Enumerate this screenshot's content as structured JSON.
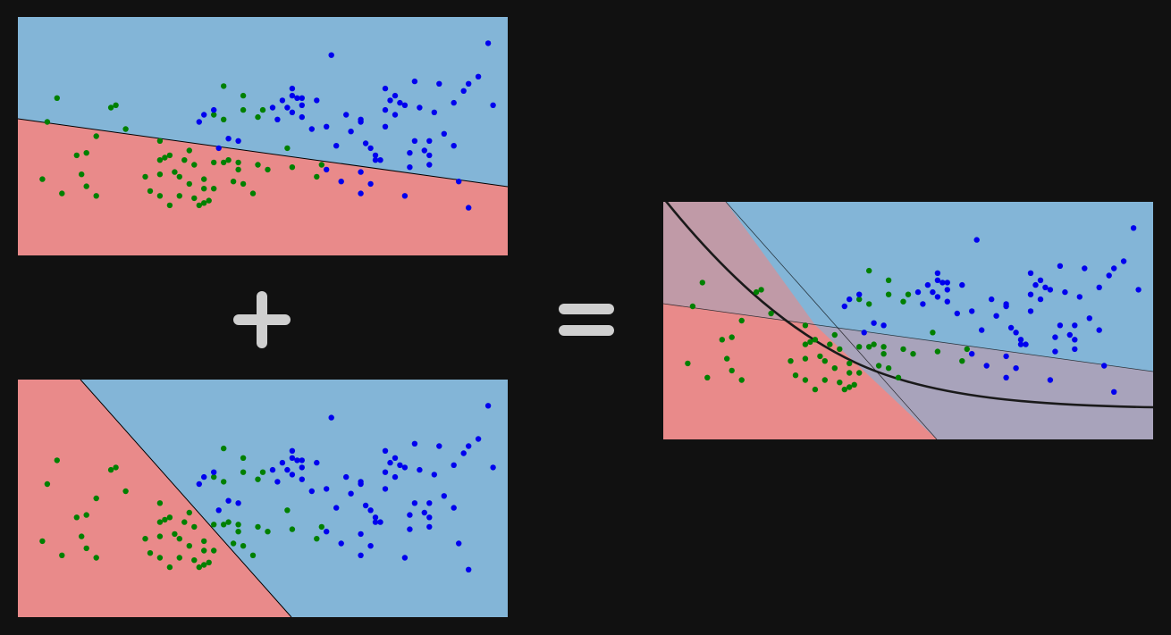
{
  "colors": {
    "background": "#111111",
    "region_class_a": "#e98a8a",
    "region_class_b": "#83b5d7",
    "region_overlap": "#a8a3bb",
    "region_overlap_left": "#c09aa7",
    "points_class_a": "#008000",
    "points_class_b": "#0000ee",
    "operator_symbol": "#cfcfcf",
    "combined_boundary": "#1a1a1a"
  },
  "icons": {
    "plus": "plus-icon",
    "equals": "equals-icon"
  },
  "diagram": {
    "description_symbols": [
      "+",
      "="
    ],
    "panels": [
      {
        "id": "top",
        "boundary": "straight-line-shallow"
      },
      {
        "id": "bottom",
        "boundary": "straight-line-steep"
      },
      {
        "id": "result",
        "boundary": "curved-combined"
      }
    ]
  },
  "chart_data": {
    "type": "scatter",
    "x_range": [
      0,
      1
    ],
    "y_range": [
      0,
      1
    ],
    "series": [
      {
        "values": [
          [
            0.08,
            0.66
          ],
          [
            0.12,
            0.42
          ],
          [
            0.19,
            0.62
          ],
          [
            0.14,
            0.43
          ],
          [
            0.16,
            0.5
          ],
          [
            0.2,
            0.63
          ],
          [
            0.22,
            0.53
          ],
          [
            0.06,
            0.56
          ],
          [
            0.05,
            0.32
          ],
          [
            0.13,
            0.34
          ],
          [
            0.09,
            0.26
          ],
          [
            0.14,
            0.29
          ],
          [
            0.16,
            0.25
          ],
          [
            0.27,
            0.27
          ],
          [
            0.29,
            0.4
          ],
          [
            0.32,
            0.35
          ],
          [
            0.34,
            0.4
          ],
          [
            0.3,
            0.41
          ],
          [
            0.31,
            0.42
          ],
          [
            0.29,
            0.34
          ],
          [
            0.33,
            0.33
          ],
          [
            0.35,
            0.3
          ],
          [
            0.36,
            0.38
          ],
          [
            0.38,
            0.32
          ],
          [
            0.4,
            0.39
          ],
          [
            0.42,
            0.39
          ],
          [
            0.45,
            0.39
          ],
          [
            0.43,
            0.4
          ],
          [
            0.45,
            0.36
          ],
          [
            0.44,
            0.31
          ],
          [
            0.46,
            0.3
          ],
          [
            0.38,
            0.28
          ],
          [
            0.4,
            0.28
          ],
          [
            0.49,
            0.38
          ],
          [
            0.51,
            0.36
          ],
          [
            0.48,
            0.26
          ],
          [
            0.56,
            0.37
          ],
          [
            0.61,
            0.33
          ],
          [
            0.35,
            0.44
          ],
          [
            0.4,
            0.59
          ],
          [
            0.42,
            0.57
          ],
          [
            0.46,
            0.61
          ],
          [
            0.49,
            0.58
          ],
          [
            0.29,
            0.25
          ],
          [
            0.36,
            0.24
          ],
          [
            0.39,
            0.23
          ],
          [
            0.29,
            0.48
          ],
          [
            0.46,
            0.67
          ],
          [
            0.5,
            0.61
          ],
          [
            0.55,
            0.45
          ],
          [
            0.62,
            0.38
          ],
          [
            0.42,
            0.71
          ],
          [
            0.37,
            0.21
          ],
          [
            0.31,
            0.21
          ],
          [
            0.33,
            0.25
          ],
          [
            0.26,
            0.33
          ],
          [
            0.38,
            0.22
          ]
        ]
      },
      {
        "values": [
          [
            0.37,
            0.56
          ],
          [
            0.38,
            0.59
          ],
          [
            0.41,
            0.45
          ],
          [
            0.4,
            0.61
          ],
          [
            0.43,
            0.49
          ],
          [
            0.52,
            0.62
          ],
          [
            0.54,
            0.65
          ],
          [
            0.55,
            0.62
          ],
          [
            0.56,
            0.6
          ],
          [
            0.58,
            0.58
          ],
          [
            0.58,
            0.63
          ],
          [
            0.6,
            0.53
          ],
          [
            0.53,
            0.57
          ],
          [
            0.56,
            0.67
          ],
          [
            0.56,
            0.7
          ],
          [
            0.57,
            0.66
          ],
          [
            0.58,
            0.66
          ],
          [
            0.61,
            0.65
          ],
          [
            0.63,
            0.54
          ],
          [
            0.65,
            0.46
          ],
          [
            0.67,
            0.59
          ],
          [
            0.68,
            0.52
          ],
          [
            0.7,
            0.57
          ],
          [
            0.71,
            0.47
          ],
          [
            0.7,
            0.56
          ],
          [
            0.72,
            0.45
          ],
          [
            0.73,
            0.42
          ],
          [
            0.74,
            0.4
          ],
          [
            0.75,
            0.54
          ],
          [
            0.75,
            0.61
          ],
          [
            0.76,
            0.65
          ],
          [
            0.77,
            0.59
          ],
          [
            0.78,
            0.64
          ],
          [
            0.79,
            0.63
          ],
          [
            0.8,
            0.37
          ],
          [
            0.81,
            0.73
          ],
          [
            0.82,
            0.62
          ],
          [
            0.83,
            0.44
          ],
          [
            0.84,
            0.38
          ],
          [
            0.84,
            0.48
          ],
          [
            0.84,
            0.42
          ],
          [
            0.87,
            0.51
          ],
          [
            0.85,
            0.6
          ],
          [
            0.89,
            0.64
          ],
          [
            0.89,
            0.46
          ],
          [
            0.91,
            0.69
          ],
          [
            0.92,
            0.72
          ],
          [
            0.97,
            0.63
          ],
          [
            0.9,
            0.31
          ],
          [
            0.94,
            0.75
          ],
          [
            0.81,
            0.48
          ],
          [
            0.73,
            0.4
          ],
          [
            0.66,
            0.31
          ],
          [
            0.7,
            0.26
          ],
          [
            0.72,
            0.3
          ],
          [
            0.79,
            0.25
          ],
          [
            0.77,
            0.67
          ],
          [
            0.64,
            0.84
          ],
          [
            0.63,
            0.36
          ],
          [
            0.92,
            0.2
          ],
          [
            0.7,
            0.35
          ],
          [
            0.75,
            0.7
          ],
          [
            0.8,
            0.43
          ],
          [
            0.96,
            0.89
          ],
          [
            0.86,
            0.72
          ],
          [
            0.45,
            0.48
          ]
        ]
      }
    ]
  }
}
